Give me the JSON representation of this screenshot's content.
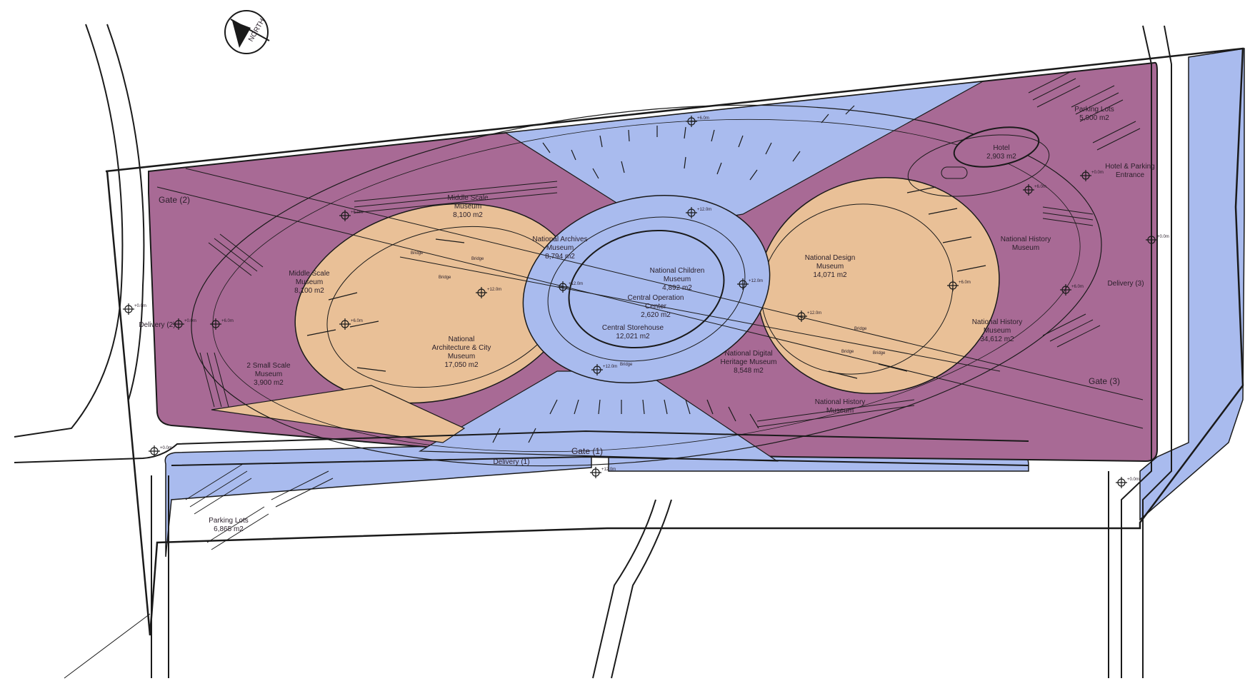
{
  "colors": {
    "purple": "#a86a95",
    "orange": "#e9c097",
    "blue": "#a9bbee",
    "line": "#1a1a1a",
    "background": "#ffffff"
  },
  "compass": {
    "icon": "north-arrow-icon",
    "label": "NORTH"
  },
  "gates": {
    "gate1": "Gate (1)",
    "gate2": "Gate (2)",
    "gate3": "Gate (3)"
  },
  "deliveries": {
    "d1": "Delivery (1)",
    "d2": "Delivery (2)",
    "d3": "Delivery (3)"
  },
  "zones": {
    "middle_scale_top": {
      "name1": "Middle Scale",
      "name2": "Museum",
      "area": "8,100 m2"
    },
    "middle_scale_left": {
      "name1": "Middle Scale",
      "name2": "Museum",
      "area": "8,100 m2"
    },
    "small_scale": {
      "name1": "2 Small Scale",
      "name2": "Museum",
      "area": "3,900 m2"
    },
    "archives": {
      "name1": "National Archives",
      "name2": "Museum",
      "area": "8,794 m2"
    },
    "architecture": {
      "name1": "National",
      "name2": "Architecture & City",
      "name3": "Museum",
      "area": "17,050 m2"
    },
    "children": {
      "name1": "National Children",
      "name2": "Museum",
      "area": "4,892 m2"
    },
    "operation": {
      "name1": "Central Operation",
      "name2": "Center",
      "area": "2,620 m2"
    },
    "storehouse": {
      "name1": "Central Storehouse",
      "area": "12,021 m2"
    },
    "design": {
      "name1": "National Design",
      "name2": "Museum",
      "area": "14,071 m2"
    },
    "digital": {
      "name1": "National Digital",
      "name2": "Heritage Museum",
      "area": "8,548 m2"
    },
    "history_top": {
      "name1": "National History",
      "name2": "Museum"
    },
    "history_mid": {
      "name1": "National History",
      "name2": "Museum",
      "area": "34,612 m2"
    },
    "history_bottom": {
      "name1": "National History",
      "name2": "Museum"
    },
    "hotel": {
      "name1": "Hotel",
      "area": "2,903 m2"
    },
    "hotel_parking": {
      "name1": "Hotel & Parking",
      "name2": "Entrance"
    },
    "parking_top": {
      "name1": "Parking Lots",
      "area": "5,900 m2"
    },
    "parking_bottom": {
      "name1": "Parking Lots",
      "area": "6,865 m2"
    }
  },
  "bridges": [
    "Bridge",
    "Bridge",
    "Bridge",
    "Bridge",
    "Bridge",
    "Bridge",
    "Bridge"
  ],
  "levels": {
    "l_p6_top": "+6.0m",
    "l_p12_top": "+12.0m",
    "l_p6_left": "+6.0m",
    "l_p0_left": "+0.0m",
    "l_p6_left2": "+6.0m",
    "l_p0_d2": "+0.0m",
    "l_p6_left3": "+6.0m",
    "l_p12_arch": "+12.0m",
    "l_p12_c1": "+12.0m",
    "l_p12_c2": "+12.0m",
    "l_p12_c3": "+12.0m",
    "l_p12_design": "+12.0m",
    "l_p6_design": "+6.0m",
    "l_p6_hist": "+6.0m",
    "l_p6_hotel": "+6.0m",
    "l_p0_hotel": "+0.0m",
    "l_p0_right": "+0.0m",
    "l_p0_bl": "+0.0m",
    "l_p12_gate": "+12.0m",
    "l_p0_br": "+0.0m",
    "l_p6_north": "+6.0m"
  }
}
